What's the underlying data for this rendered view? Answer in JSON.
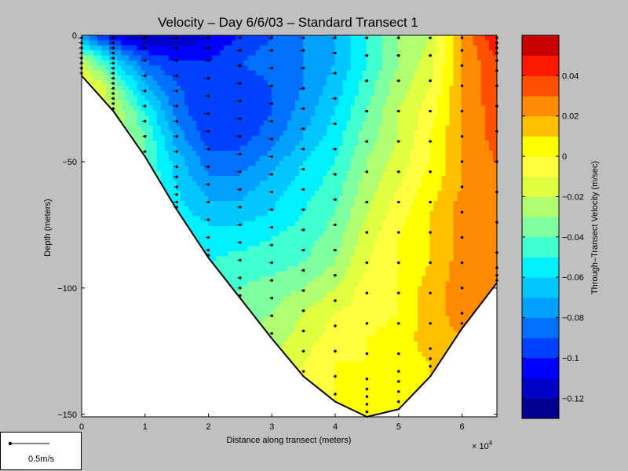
{
  "chart_data": {
    "type": "heatmap",
    "title": "Velocity – Day 6/6/03 – Standard Transect 1",
    "xlabel": "Distance along transect (meters)",
    "x_multiplier": "× 10",
    "x_multiplier_exp": "4",
    "ylabel": "Depth (meters)",
    "colorbar_label": "Through–Transect Velocity (m/sec)",
    "xlim": [
      0,
      6.55
    ],
    "ylim": [
      -151,
      0
    ],
    "xticks": [
      {
        "value": 0,
        "label": "0"
      },
      {
        "value": 1,
        "label": "1"
      },
      {
        "value": 2,
        "label": "2"
      },
      {
        "value": 3,
        "label": "3"
      },
      {
        "value": 4,
        "label": "4"
      },
      {
        "value": 5,
        "label": "5"
      },
      {
        "value": 6,
        "label": "6"
      }
    ],
    "yticks": [
      {
        "value": 0,
        "label": "0"
      },
      {
        "value": -50,
        "label": "−50"
      },
      {
        "value": -100,
        "label": "−100"
      },
      {
        "value": -150,
        "label": "−150"
      }
    ],
    "colorbar_range": [
      -0.13,
      0.06
    ],
    "colorbar_levels": [
      {
        "min": -0.13,
        "max": -0.12,
        "color": "#00008f"
      },
      {
        "min": -0.12,
        "max": -0.11,
        "color": "#0000c8"
      },
      {
        "min": -0.11,
        "max": -0.1,
        "color": "#0000ff"
      },
      {
        "min": -0.1,
        "max": -0.09,
        "color": "#0040ff"
      },
      {
        "min": -0.09,
        "max": -0.08,
        "color": "#0070ff"
      },
      {
        "min": -0.08,
        "max": -0.07,
        "color": "#00a0ff"
      },
      {
        "min": -0.07,
        "max": -0.06,
        "color": "#00c8ff"
      },
      {
        "min": -0.06,
        "max": -0.05,
        "color": "#00f0ff"
      },
      {
        "min": -0.05,
        "max": -0.04,
        "color": "#40ffd0"
      },
      {
        "min": -0.04,
        "max": -0.03,
        "color": "#80ffa0"
      },
      {
        "min": -0.03,
        "max": -0.02,
        "color": "#b0ff70"
      },
      {
        "min": -0.02,
        "max": -0.01,
        "color": "#e0ff40"
      },
      {
        "min": -0.01,
        "max": 0.0,
        "color": "#ffff40"
      },
      {
        "min": 0.0,
        "max": 0.01,
        "color": "#ffff00"
      },
      {
        "min": 0.01,
        "max": 0.02,
        "color": "#ffc000"
      },
      {
        "min": 0.02,
        "max": 0.03,
        "color": "#ff8c00"
      },
      {
        "min": 0.03,
        "max": 0.04,
        "color": "#ff5000"
      },
      {
        "min": 0.04,
        "max": 0.05,
        "color": "#ff1800"
      },
      {
        "min": 0.05,
        "max": 0.06,
        "color": "#c80000"
      }
    ],
    "colorbar_ticks": [
      {
        "value": 0.04,
        "label": "0.04"
      },
      {
        "value": 0.02,
        "label": "0.02"
      },
      {
        "value": 0,
        "label": "0"
      },
      {
        "value": -0.02,
        "label": "−0.02"
      },
      {
        "value": -0.04,
        "label": "−0.04"
      },
      {
        "value": -0.06,
        "label": "−0.06"
      },
      {
        "value": -0.08,
        "label": "−0.08"
      },
      {
        "value": -0.1,
        "label": "−0.1"
      },
      {
        "value": -0.12,
        "label": "−0.12"
      }
    ],
    "bottom_profile": [
      {
        "x": 0,
        "depth": -16
      },
      {
        "x": 0.5,
        "depth": -30
      },
      {
        "x": 1,
        "depth": -48
      },
      {
        "x": 1.5,
        "depth": -69
      },
      {
        "x": 2,
        "depth": -88
      },
      {
        "x": 2.5,
        "depth": -104
      },
      {
        "x": 3,
        "depth": -120
      },
      {
        "x": 3.5,
        "depth": -135
      },
      {
        "x": 4,
        "depth": -145
      },
      {
        "x": 4.5,
        "depth": -151
      },
      {
        "x": 5,
        "depth": -148
      },
      {
        "x": 5.5,
        "depth": -135
      },
      {
        "x": 6,
        "depth": -116
      },
      {
        "x": 6.55,
        "depth": -98
      }
    ],
    "velocity_field": {
      "stations_x": [
        0,
        0.5,
        1,
        1.5,
        2,
        2.5,
        3,
        3.5,
        4,
        4.5,
        5,
        5.5,
        6,
        6.55
      ],
      "depths": [
        0,
        -10,
        -20,
        -30,
        -40,
        -50,
        -60,
        -70,
        -80,
        -90,
        -100,
        -110,
        -120,
        -130,
        -140,
        -150
      ],
      "values_m_per_s": [
        [
          -0.08,
          -0.11,
          -0.12,
          -0.12,
          -0.11,
          -0.1,
          -0.09,
          -0.08,
          -0.07,
          -0.05,
          -0.03,
          -0.02,
          0.02,
          0.05
        ],
        [
          -0.02,
          -0.06,
          -0.09,
          -0.1,
          -0.1,
          -0.09,
          -0.085,
          -0.08,
          -0.07,
          -0.05,
          -0.03,
          -0.015,
          0.02,
          0.04
        ],
        [
          0.0,
          -0.03,
          -0.07,
          -0.09,
          -0.095,
          -0.095,
          -0.09,
          -0.08,
          -0.065,
          -0.045,
          -0.025,
          -0.01,
          0.02,
          0.04
        ],
        [
          0.0,
          -0.02,
          -0.05,
          -0.085,
          -0.1,
          -0.1,
          -0.09,
          -0.075,
          -0.06,
          -0.04,
          -0.02,
          -0.005,
          0.02,
          0.035
        ],
        [
          0.0,
          -0.02,
          -0.04,
          -0.075,
          -0.095,
          -0.095,
          -0.085,
          -0.07,
          -0.055,
          -0.035,
          -0.02,
          0.0,
          0.02,
          0.035
        ],
        [
          0.0,
          -0.02,
          -0.04,
          -0.065,
          -0.085,
          -0.085,
          -0.075,
          -0.06,
          -0.05,
          -0.03,
          -0.015,
          0.0,
          0.02,
          0.03
        ],
        [
          0.0,
          -0.02,
          -0.04,
          -0.06,
          -0.075,
          -0.075,
          -0.065,
          -0.055,
          -0.045,
          -0.025,
          -0.01,
          0.005,
          0.02,
          0.03
        ],
        [
          0.0,
          -0.02,
          -0.04,
          -0.055,
          -0.065,
          -0.065,
          -0.06,
          -0.05,
          -0.04,
          -0.02,
          -0.005,
          0.01,
          0.025,
          0.03
        ],
        [
          0.0,
          -0.02,
          -0.04,
          -0.05,
          -0.055,
          -0.055,
          -0.05,
          -0.045,
          -0.035,
          -0.015,
          0.0,
          0.01,
          0.025,
          0.03
        ],
        [
          0.0,
          -0.02,
          -0.04,
          -0.05,
          -0.05,
          -0.045,
          -0.045,
          -0.04,
          -0.03,
          -0.01,
          0.0,
          0.01,
          0.025,
          0.03
        ],
        [
          0.0,
          -0.02,
          -0.04,
          -0.05,
          -0.045,
          -0.04,
          -0.035,
          -0.03,
          -0.02,
          -0.005,
          0.0,
          0.015,
          0.025,
          0.03
        ],
        [
          0.0,
          -0.02,
          -0.04,
          -0.045,
          -0.04,
          -0.035,
          -0.03,
          -0.02,
          -0.01,
          -0.005,
          0.0,
          0.015,
          0.025,
          0.03
        ],
        [
          0.0,
          -0.02,
          -0.04,
          -0.04,
          -0.035,
          -0.03,
          -0.025,
          -0.015,
          -0.005,
          0.0,
          0.005,
          0.015,
          0.02,
          0.03
        ],
        [
          0.0,
          -0.02,
          -0.04,
          -0.04,
          -0.035,
          -0.03,
          -0.02,
          -0.01,
          0.0,
          0.0,
          0.005,
          0.01,
          0.02,
          0.03
        ],
        [
          0.0,
          -0.02,
          -0.04,
          -0.04,
          -0.035,
          -0.025,
          -0.015,
          -0.005,
          0.0,
          0.0,
          0.005,
          0.01,
          0.02,
          0.03
        ],
        [
          0.0,
          -0.02,
          -0.04,
          -0.04,
          -0.03,
          -0.02,
          -0.01,
          -0.005,
          0.0,
          0.0,
          0.005,
          0.01,
          0.02,
          0.03
        ]
      ]
    },
    "arrow_stations": [
      {
        "x": 0,
        "depths": [
          -1,
          -3,
          -5,
          -7,
          -9,
          -11,
          -13,
          -15
        ]
      },
      {
        "x": 0.5,
        "depths": [
          -1,
          -3,
          -5,
          -7,
          -9,
          -11,
          -13,
          -15,
          -17,
          -19,
          -21,
          -23,
          -25,
          -27,
          -29
        ]
      },
      {
        "x": 1,
        "depths": [
          -1,
          -5,
          -10,
          -16,
          -22,
          -28,
          -34,
          -40,
          -46
        ]
      },
      {
        "x": 1.5,
        "depths": [
          -1,
          -5,
          -10,
          -16,
          -22,
          -28,
          -34,
          -40,
          -46,
          -52,
          -56,
          -60,
          -63,
          -66,
          -68
        ]
      },
      {
        "x": 2,
        "depths": [
          -1,
          -5,
          -10,
          -17,
          -24,
          -31,
          -38,
          -45,
          -52,
          -59,
          -66,
          -73,
          -80,
          -85,
          -87
        ]
      },
      {
        "x": 2.5,
        "depths": [
          -1,
          -6,
          -12,
          -19,
          -26,
          -33,
          -40,
          -47,
          -54,
          -61,
          -68,
          -75,
          -82,
          -89,
          -96,
          -100,
          -103
        ]
      },
      {
        "x": 3,
        "depths": [
          -1,
          -6,
          -13,
          -20,
          -27,
          -34,
          -41,
          -48,
          -55,
          -62,
          -69,
          -76,
          -83,
          -90,
          -97,
          -104,
          -111,
          -118
        ]
      },
      {
        "x": 3.5,
        "depths": [
          -1,
          -6,
          -13,
          -21,
          -29,
          -37,
          -45,
          -53,
          -61,
          -69,
          -77,
          -85,
          -93,
          -101,
          -109,
          -117,
          -125,
          -133
        ]
      },
      {
        "x": 4,
        "depths": [
          -1,
          -7,
          -15,
          -25,
          -35,
          -45,
          -55,
          -65,
          -75,
          -85,
          -95,
          -105,
          -115,
          -125,
          -135,
          -142
        ]
      },
      {
        "x": 4.5,
        "depths": [
          -1,
          -8,
          -18,
          -30,
          -42,
          -54,
          -66,
          -78,
          -90,
          -102,
          -114,
          -126,
          -136,
          -140,
          -143,
          -146,
          -149
        ]
      },
      {
        "x": 5,
        "depths": [
          -1,
          -8,
          -18,
          -30,
          -42,
          -54,
          -66,
          -78,
          -90,
          -102,
          -114,
          -126,
          -133,
          -137,
          -141,
          -145
        ]
      },
      {
        "x": 5.5,
        "depths": [
          -1,
          -8,
          -18,
          -30,
          -42,
          -54,
          -66,
          -78,
          -90,
          -102,
          -114,
          -124,
          -128,
          -131
        ]
      },
      {
        "x": 6,
        "depths": [
          -1,
          -6,
          -12,
          -20,
          -30,
          -40,
          -50,
          -60,
          -70,
          -80,
          -90,
          -100,
          -110,
          -114
        ]
      },
      {
        "x": 6.55,
        "depths": [
          -1,
          -3,
          -5,
          -7,
          -10,
          -14,
          -20,
          -28,
          -38,
          -50,
          -62,
          -74,
          -86,
          -92,
          -95,
          -97
        ]
      }
    ],
    "scale_arrow": {
      "label": "0.5m/s",
      "speed": 0.5
    }
  }
}
